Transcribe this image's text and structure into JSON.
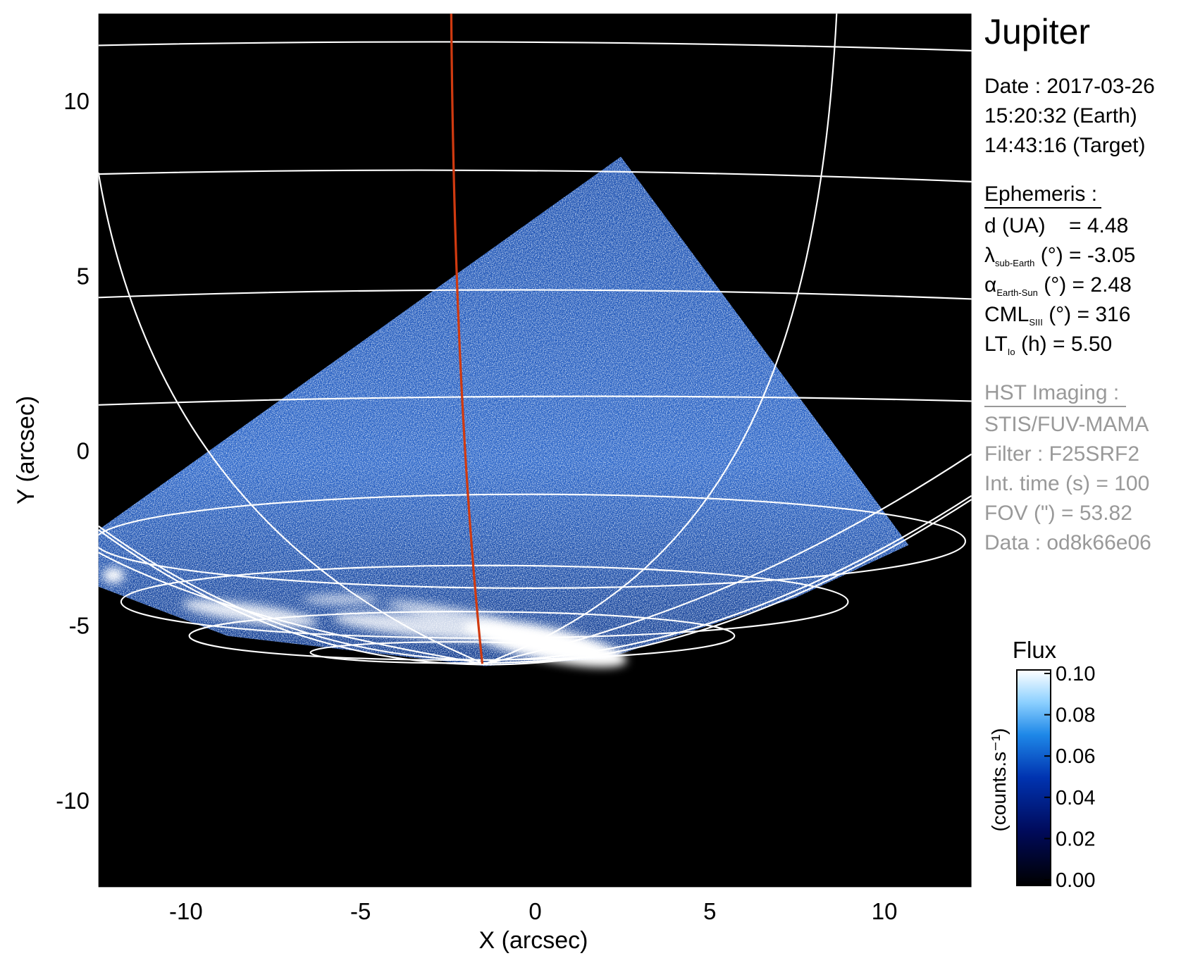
{
  "chart_data": {
    "type": "image",
    "title": "Jupiter",
    "xlabel": "X (arcsec)",
    "ylabel": "Y (arcsec)",
    "xlim": [
      -12.5,
      12.5
    ],
    "ylim": [
      -12.5,
      12.5
    ],
    "xticks": [
      -10,
      -5,
      0,
      5,
      10
    ],
    "yticks": [
      -10,
      -5,
      0,
      5,
      10
    ],
    "colorbar": {
      "label": "Flux",
      "unit": "(counts.s⁻¹)",
      "clim": [
        0,
        0.1
      ],
      "ticks": [
        {
          "value": 0,
          "label": "0.00"
        },
        {
          "value": 0.02,
          "label": "0.02"
        },
        {
          "value": 0.04,
          "label": "0.04"
        },
        {
          "value": 0.06,
          "label": "0.06"
        },
        {
          "value": 0.08,
          "label": "0.08"
        },
        {
          "value": 0.1,
          "label": "0.10"
        }
      ]
    }
  },
  "info": {
    "date": "Date : 2017-03-26",
    "times": [
      "15:20:32 (Earth)",
      "14:43:16 (Target)"
    ],
    "ephemeris": {
      "title": "Ephemeris :",
      "items": [
        {
          "main": "d (UA)    = 4.48"
        },
        {
          "main": "λ",
          "sub": "sub-Earth",
          "rest": " (°) = -3.05"
        },
        {
          "main": "α",
          "sub": "Earth-Sun",
          "rest": " (°) = 2.48"
        },
        {
          "main": "CML",
          "sub": "SIII",
          "rest": " (°) = 316"
        },
        {
          "main": "LT",
          "sub": "Io",
          "rest": " (h) = 5.50"
        }
      ]
    },
    "hst": {
      "title": "HST Imaging :",
      "items": [
        "STIS/FUV-MAMA",
        "Filter : F25SRF2",
        "Int. time (s) = 100",
        "FOV (\") = 53.82",
        "Data : od8k66e06"
      ]
    }
  }
}
